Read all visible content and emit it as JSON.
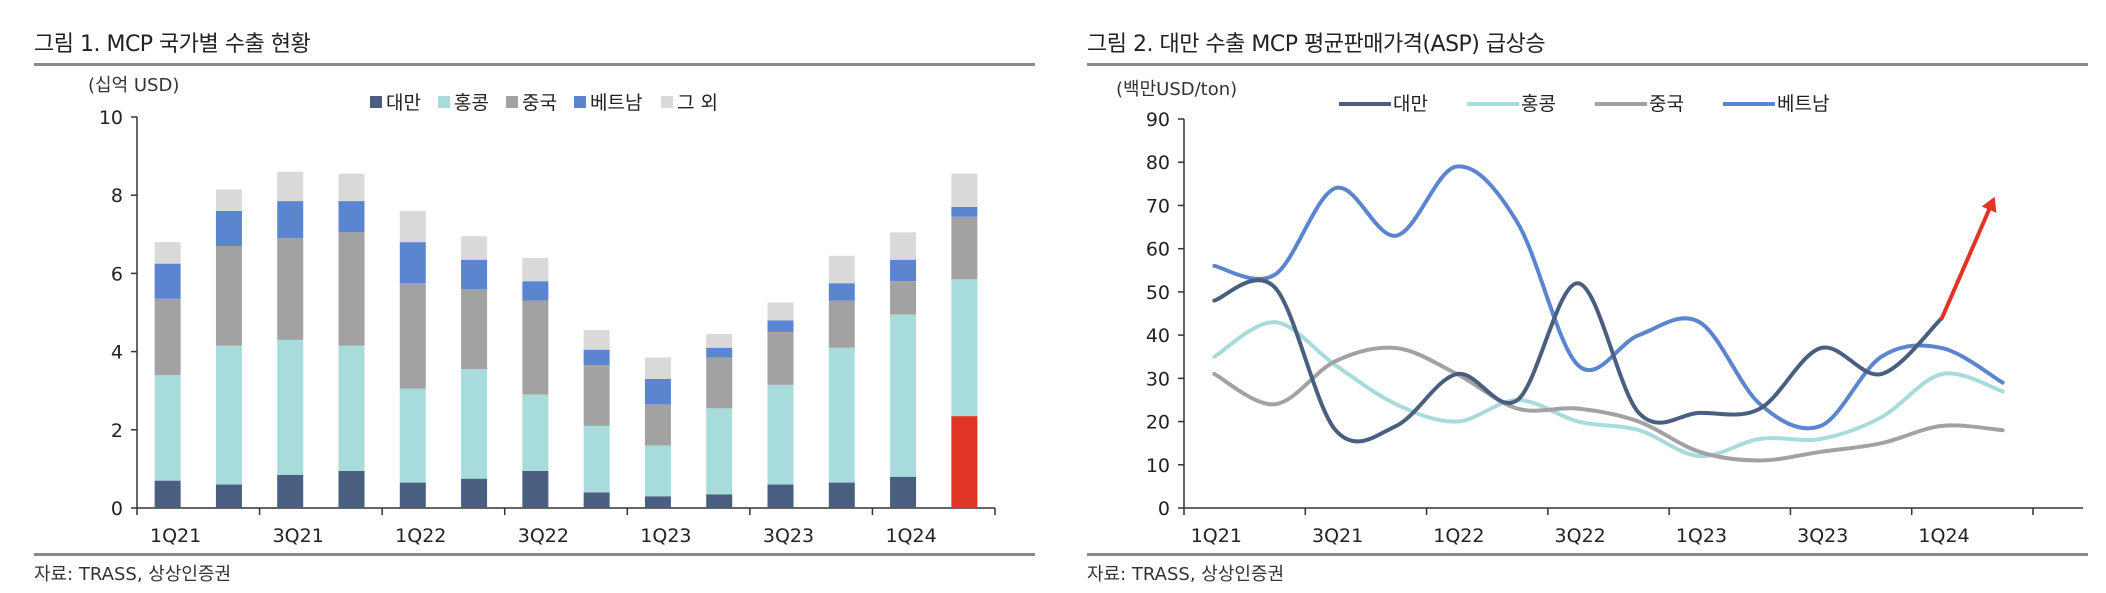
{
  "left": {
    "title": "그림 1. MCP 국가별 수출 현황",
    "source": "자료: TRASS, 상상인증권"
  },
  "right": {
    "title": "그림 2. 대만 수출 MCP 평균판매가격(ASP) 급상승",
    "source": "자료: TRASS, 상상인증권"
  },
  "colors": {
    "taiwan": "#4a5e80",
    "hongkong": "#a8dcdc",
    "china": "#a2a2a2",
    "vietnam": "#5b86cf",
    "others": "#d9d9d9",
    "highlight": "#e03424"
  },
  "chart_data": [
    {
      "type": "bar",
      "stacked": true,
      "unit_label": "(십억 USD)",
      "categories": [
        "1Q21",
        "2Q21",
        "3Q21",
        "4Q21",
        "1Q22",
        "2Q22",
        "3Q22",
        "4Q22",
        "1Q23",
        "2Q23",
        "3Q23",
        "4Q23",
        "1Q24",
        "2Q24"
      ],
      "tick_labels": [
        "1Q21",
        "",
        "3Q21",
        "",
        "1Q22",
        "",
        "3Q22",
        "",
        "1Q23",
        "",
        "3Q23",
        "",
        "1Q24",
        ""
      ],
      "series": [
        {
          "name": "대만",
          "values": [
            0.7,
            0.6,
            0.85,
            0.95,
            0.65,
            0.75,
            0.95,
            0.4,
            0.3,
            0.35,
            0.6,
            0.65,
            0.8,
            2.35
          ]
        },
        {
          "name": "홍콩",
          "values": [
            2.7,
            3.55,
            3.45,
            3.2,
            2.4,
            2.8,
            1.95,
            1.7,
            1.3,
            2.2,
            2.55,
            3.45,
            4.15,
            3.5
          ]
        },
        {
          "name": "중국",
          "values": [
            1.95,
            2.55,
            2.6,
            2.9,
            2.7,
            2.05,
            2.4,
            1.55,
            1.05,
            1.3,
            1.35,
            1.2,
            0.85,
            1.6
          ]
        },
        {
          "name": "베트남",
          "values": [
            0.9,
            0.9,
            0.95,
            0.8,
            1.05,
            0.75,
            0.5,
            0.4,
            0.65,
            0.25,
            0.3,
            0.45,
            0.55,
            0.25
          ]
        },
        {
          "name": "그 외",
          "values": [
            0.55,
            0.55,
            0.75,
            0.7,
            0.8,
            0.6,
            0.6,
            0.5,
            0.55,
            0.35,
            0.45,
            0.7,
            0.7,
            0.85
          ]
        }
      ],
      "highlight": {
        "category": "2Q24",
        "series": "대만"
      },
      "ylim": [
        0,
        10
      ],
      "yticks": [
        0,
        2,
        4,
        6,
        8,
        10
      ]
    },
    {
      "type": "line",
      "unit_label": "(백만USD/ton)",
      "x": [
        "1Q21",
        "2Q21",
        "3Q21",
        "4Q21",
        "1Q22",
        "2Q22",
        "3Q22",
        "4Q22",
        "1Q23",
        "2Q23",
        "3Q23",
        "4Q23",
        "1Q24",
        "2Q24"
      ],
      "tick_labels": [
        "1Q21",
        "",
        "3Q21",
        "",
        "1Q22",
        "",
        "3Q22",
        "",
        "1Q23",
        "",
        "3Q23",
        "",
        "1Q24",
        ""
      ],
      "series": [
        {
          "name": "대만",
          "values": [
            48,
            51,
            18,
            19,
            31,
            25,
            52,
            22,
            22,
            23,
            37,
            31,
            44,
            null
          ]
        },
        {
          "name": "홍콩",
          "values": [
            35,
            43,
            33,
            24,
            20,
            25,
            20,
            18,
            12,
            16,
            16,
            21,
            31,
            27
          ]
        },
        {
          "name": "중국",
          "values": [
            31,
            24,
            34,
            37,
            31,
            23,
            23,
            20,
            13,
            11,
            13,
            15,
            19,
            18
          ]
        },
        {
          "name": "베트남",
          "values": [
            56,
            54,
            74,
            63,
            79,
            66,
            33,
            40,
            43,
            24,
            19,
            35,
            37,
            29
          ]
        }
      ],
      "highlight_extension": {
        "series": "대만",
        "from": 44,
        "to": 72
      },
      "ylim": [
        0,
        90
      ],
      "yticks": [
        0,
        10,
        20,
        30,
        40,
        50,
        60,
        70,
        80,
        90
      ]
    }
  ]
}
